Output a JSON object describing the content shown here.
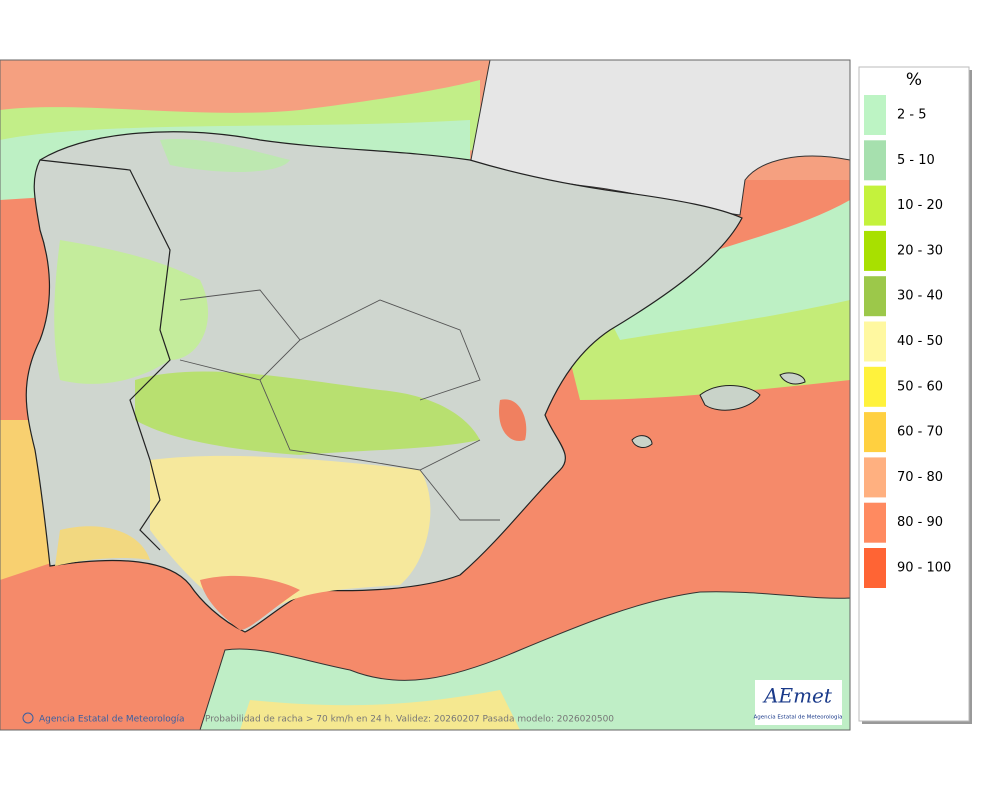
{
  "legend": {
    "title": "%",
    "items": [
      {
        "label": "2 - 5",
        "color": "#bdf4c4"
      },
      {
        "label": "5 - 10",
        "color": "#a6e0ae"
      },
      {
        "label": "10 - 20",
        "color": "#c4f23c"
      },
      {
        "label": "20 - 30",
        "color": "#a8e000"
      },
      {
        "label": "30 - 40",
        "color": "#9cc84a"
      },
      {
        "label": "40 - 50",
        "color": "#fff8a0"
      },
      {
        "label": "50 - 60",
        "color": "#fff23c"
      },
      {
        "label": "60 - 70",
        "color": "#ffd040"
      },
      {
        "label": "70 - 80",
        "color": "#ffb080"
      },
      {
        "label": "80 - 90",
        "color": "#ff8a60"
      },
      {
        "label": "90 - 100",
        "color": "#ff6434"
      }
    ]
  },
  "footer": {
    "copyright": "Agencia Estatal de Meteorología",
    "caption": "Probabilidad de racha > 70 km/h en 24 h. Validez: 20260207 Pasada modelo: 2026020500"
  },
  "logo": {
    "name": "AEmet",
    "subtitle": "Agencia Estatal de Meteorología"
  }
}
